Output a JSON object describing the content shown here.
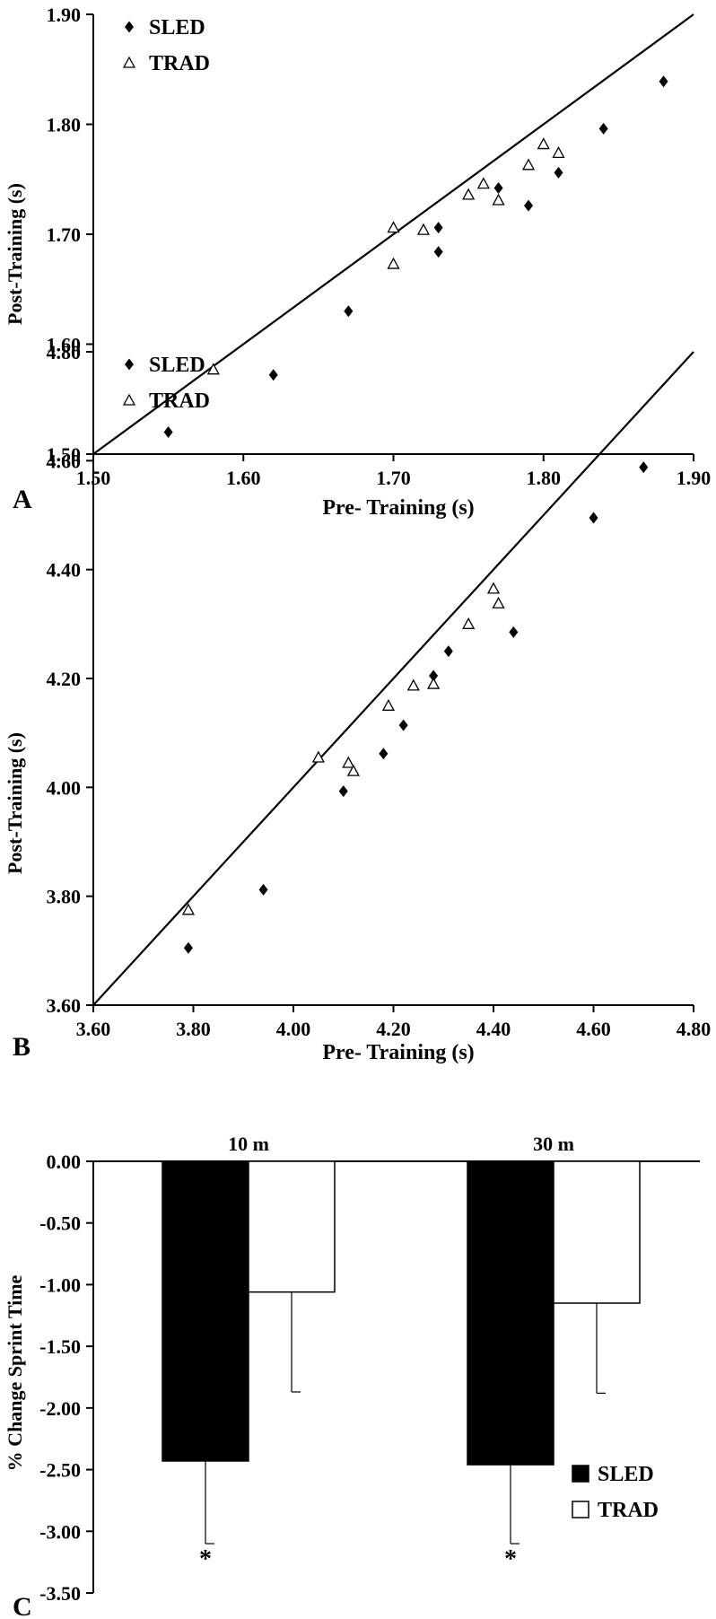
{
  "chart_data": [
    {
      "panel_label": "A",
      "type": "scatter",
      "xlabel": "Pre- Training (s)",
      "ylabel": "Post-Training (s)",
      "xlim": [
        1.5,
        1.9
      ],
      "ylim": [
        1.5,
        1.9
      ],
      "x_ticks": [
        "1.50",
        "1.60",
        "1.70",
        "1.80",
        "1.90"
      ],
      "y_ticks": [
        "1.50",
        "1.60",
        "1.70",
        "1.80",
        "1.90"
      ],
      "grid": false,
      "legend": "top-left",
      "identity_line": true,
      "series": [
        {
          "name": "SLED",
          "marker": "filled-diamond",
          "points": [
            [
              1.55,
              1.52
            ],
            [
              1.62,
              1.572
            ],
            [
              1.67,
              1.63
            ],
            [
              1.73,
              1.706
            ],
            [
              1.73,
              1.684
            ],
            [
              1.77,
              1.742
            ],
            [
              1.79,
              1.726
            ],
            [
              1.81,
              1.756
            ],
            [
              1.84,
              1.796
            ],
            [
              1.88,
              1.839
            ]
          ]
        },
        {
          "name": "TRAD",
          "marker": "open-triangle",
          "points": [
            [
              1.58,
              1.577
            ],
            [
              1.7,
              1.706
            ],
            [
              1.7,
              1.673
            ],
            [
              1.72,
              1.704
            ],
            [
              1.75,
              1.736
            ],
            [
              1.76,
              1.746
            ],
            [
              1.77,
              1.731
            ],
            [
              1.79,
              1.763
            ],
            [
              1.8,
              1.782
            ],
            [
              1.81,
              1.774
            ]
          ]
        }
      ]
    },
    {
      "panel_label": "B",
      "type": "scatter",
      "xlabel": "Pre- Training (s)",
      "ylabel": "Post-Training (s)",
      "xlim": [
        3.6,
        4.8
      ],
      "ylim": [
        3.6,
        4.8
      ],
      "x_ticks": [
        "3.60",
        "3.80",
        "4.00",
        "4.20",
        "4.40",
        "4.60",
        "4.80"
      ],
      "y_ticks": [
        "3.60",
        "3.80",
        "4.00",
        "4.20",
        "4.40",
        "4.60",
        "4.80"
      ],
      "grid": false,
      "legend": "top-left",
      "identity_line": true,
      "series": [
        {
          "name": "SLED",
          "marker": "filled-diamond",
          "points": [
            [
              3.79,
              3.705
            ],
            [
              3.94,
              3.812
            ],
            [
              4.1,
              3.993
            ],
            [
              4.18,
              4.062
            ],
            [
              4.22,
              4.114
            ],
            [
              4.28,
              4.205
            ],
            [
              4.31,
              4.25
            ],
            [
              4.44,
              4.285
            ],
            [
              4.6,
              4.495
            ],
            [
              4.7,
              4.588
            ]
          ]
        },
        {
          "name": "TRAD",
          "marker": "open-triangle",
          "points": [
            [
              3.79,
              3.775
            ],
            [
              4.05,
              4.055
            ],
            [
              4.11,
              4.045
            ],
            [
              4.12,
              4.03
            ],
            [
              4.19,
              4.15
            ],
            [
              4.24,
              4.187
            ],
            [
              4.28,
              4.19
            ],
            [
              4.35,
              4.3
            ],
            [
              4.4,
              4.365
            ],
            [
              4.41,
              4.338
            ]
          ]
        }
      ]
    },
    {
      "panel_label": "C",
      "type": "bar",
      "categories": [
        "10 m",
        "30 m"
      ],
      "ylabel": "% Change Sprint Time",
      "ylim": [
        -3.5,
        0
      ],
      "y_ticks": [
        "0.00",
        "-0.50",
        "-1.00",
        "-1.50",
        "-2.00",
        "-2.50",
        "-3.00",
        "-3.50"
      ],
      "grid": false,
      "legend": "bottom-right",
      "series": [
        {
          "name": "SLED",
          "fill": "#000000",
          "values": [
            -2.43,
            -2.46
          ],
          "error_low": [
            -3.1,
            -3.1
          ],
          "significance": [
            "*",
            "*"
          ]
        },
        {
          "name": "TRAD",
          "fill": "#ffffff",
          "values": [
            -1.06,
            -1.15
          ],
          "error_low": [
            -1.87,
            -1.88
          ],
          "significance": [
            "",
            ""
          ]
        }
      ]
    }
  ]
}
